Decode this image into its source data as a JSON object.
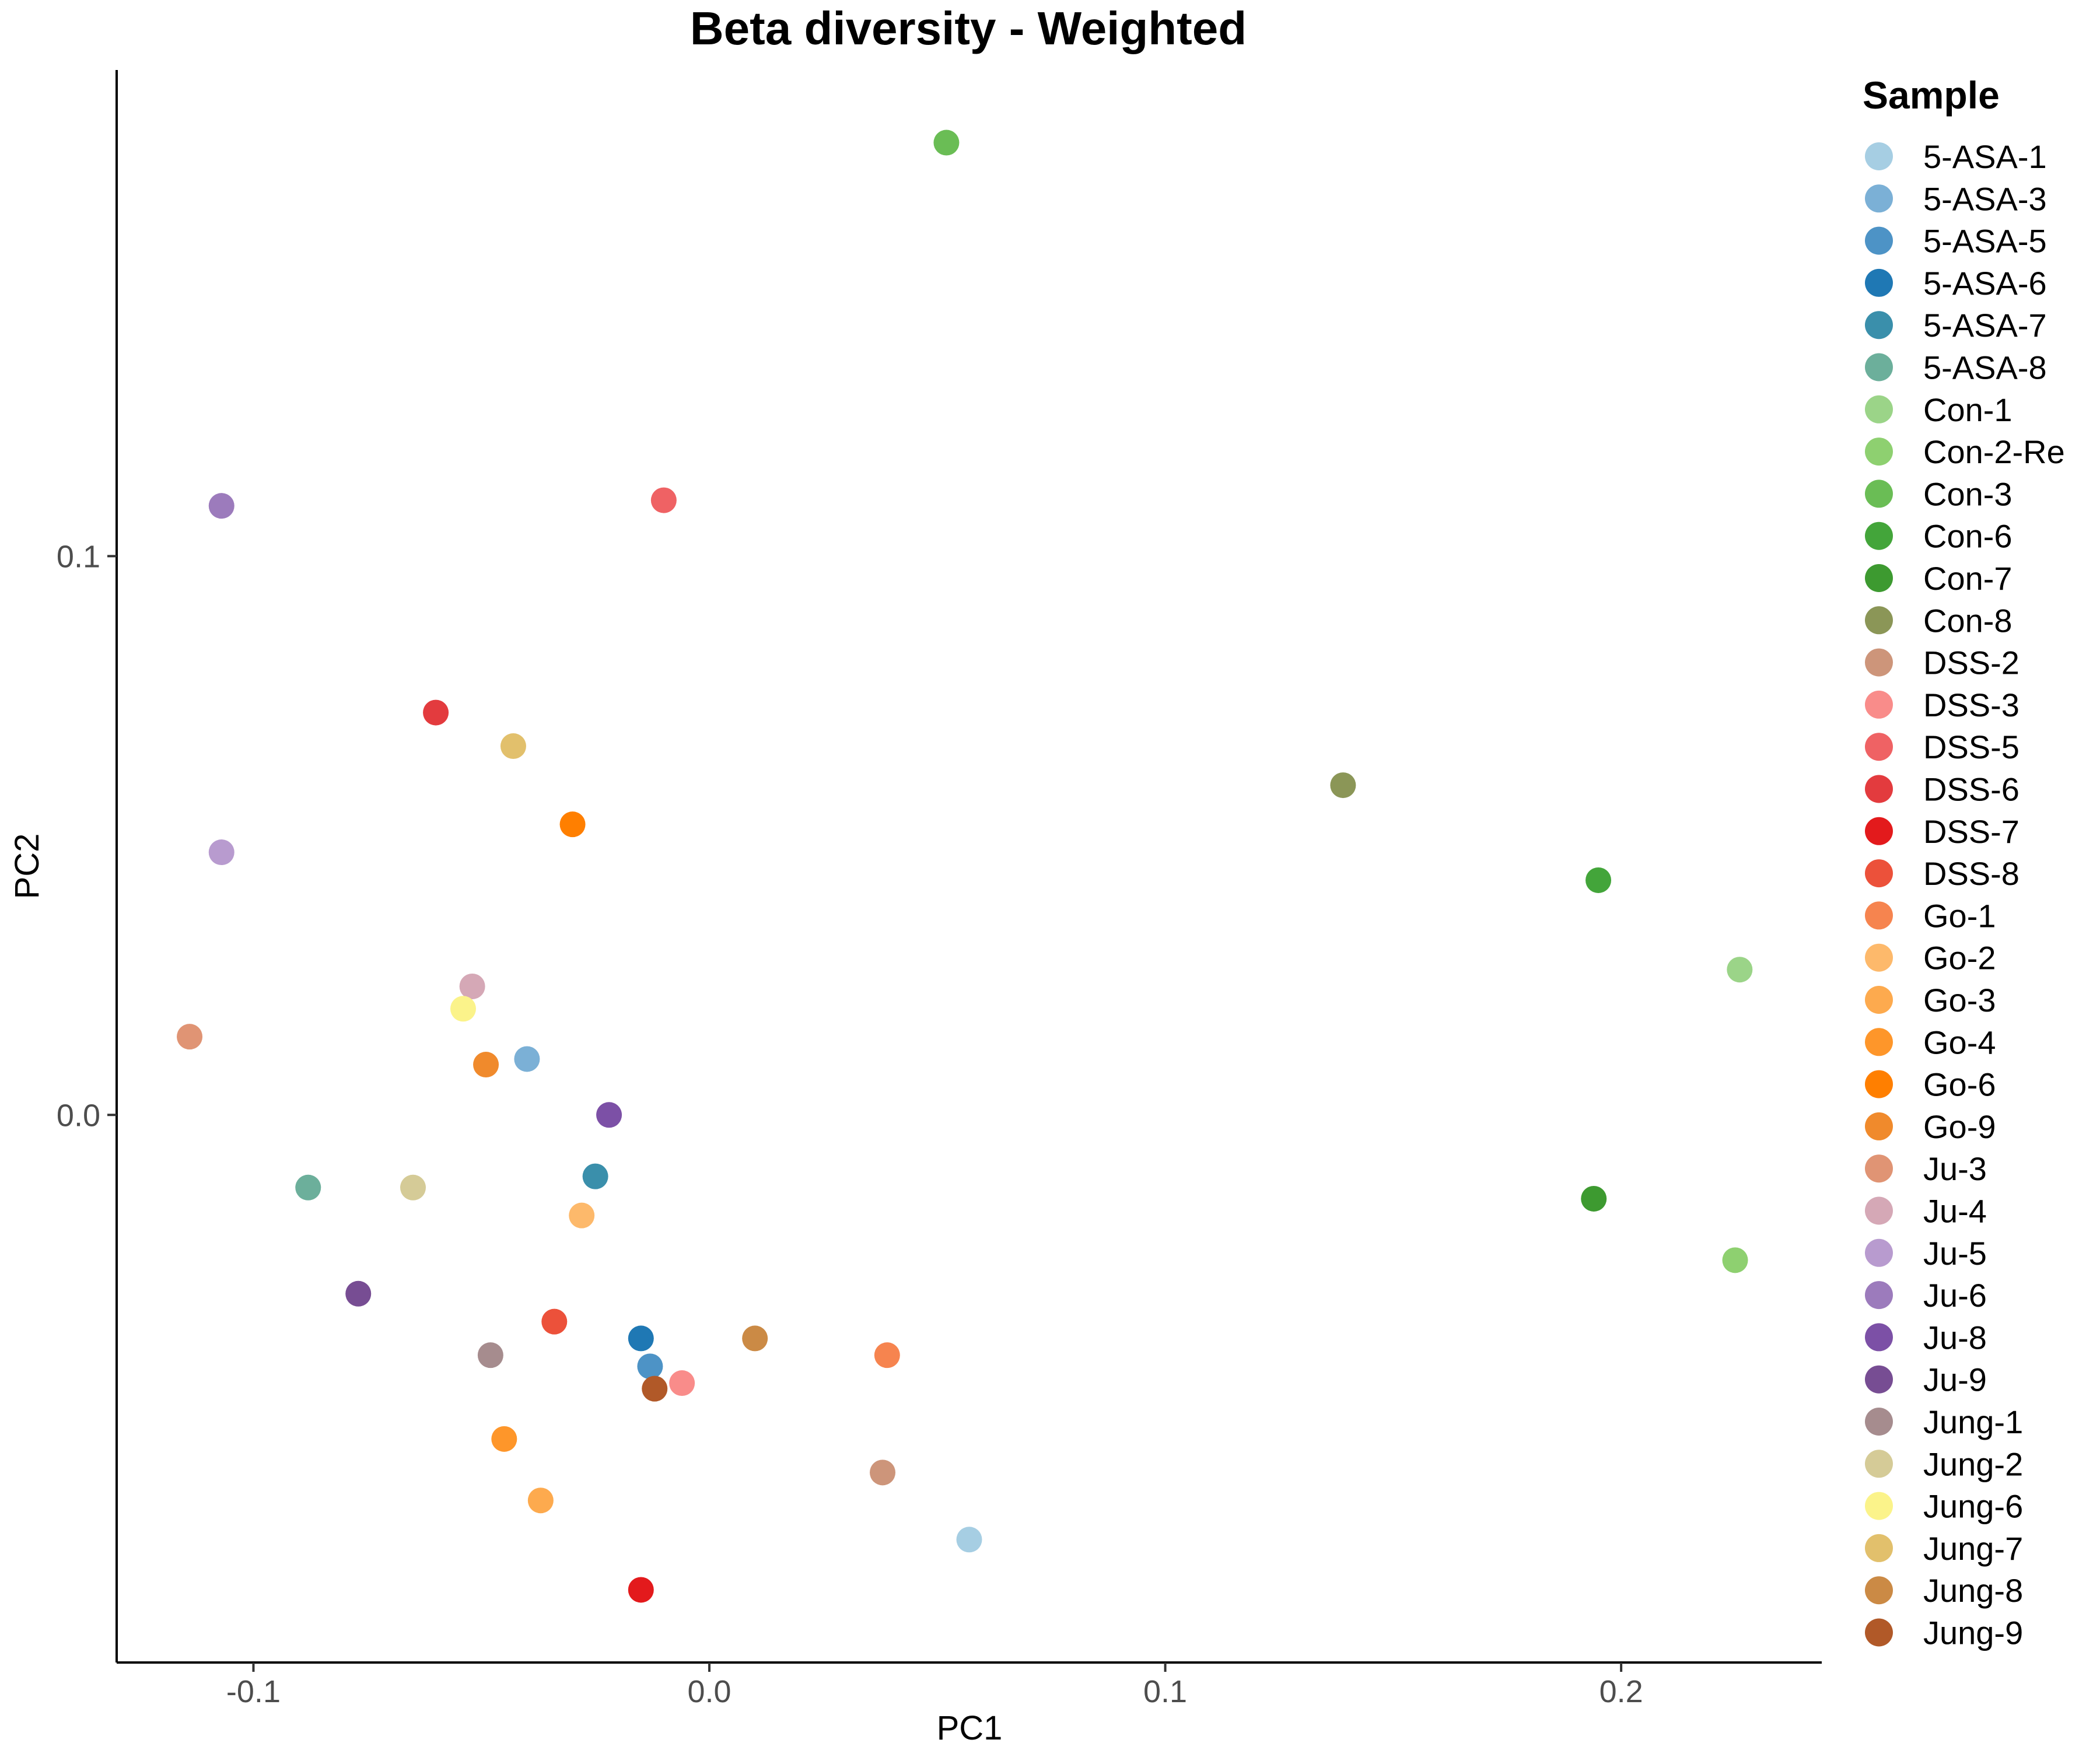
{
  "chart_data": {
    "type": "scatter",
    "title": "Beta diversity - Weighted",
    "xlabel": "PC1",
    "ylabel": "PC2",
    "xlim": [
      -0.13,
      0.244
    ],
    "ylim": [
      -0.098,
      0.187
    ],
    "x_ticks": [
      {
        "value": -0.1,
        "label": "-0.1"
      },
      {
        "value": 0.0,
        "label": "0.0"
      },
      {
        "value": 0.1,
        "label": "0.1"
      },
      {
        "value": 0.2,
        "label": "0.2"
      }
    ],
    "y_ticks": [
      {
        "value": 0.0,
        "label": "0.0"
      },
      {
        "value": 0.1,
        "label": "0.1"
      }
    ],
    "grid": false,
    "legend": {
      "title": "Sample",
      "position": "right"
    },
    "series": [
      {
        "name": "5-ASA-1",
        "color": "#A6CEE3",
        "x": 0.057,
        "y": -0.076
      },
      {
        "name": "5-ASA-3",
        "color": "#7BB0D6",
        "x": -0.04,
        "y": 0.01
      },
      {
        "name": "5-ASA-5",
        "color": "#4D93C6",
        "x": -0.013,
        "y": -0.045
      },
      {
        "name": "5-ASA-6",
        "color": "#1F78B4",
        "x": -0.015,
        "y": -0.04
      },
      {
        "name": "5-ASA-7",
        "color": "#3A8FAB",
        "x": -0.025,
        "y": -0.011
      },
      {
        "name": "5-ASA-8",
        "color": "#6CAF9B",
        "x": -0.088,
        "y": -0.013
      },
      {
        "name": "Con-1",
        "color": "#9BD488",
        "x": 0.226,
        "y": 0.026
      },
      {
        "name": "Con-2-Re",
        "color": "#8ED070",
        "x": 0.225,
        "y": -0.026
      },
      {
        "name": "Con-3",
        "color": "#6ABD55",
        "x": 0.052,
        "y": 0.174
      },
      {
        "name": "Con-6",
        "color": "#43A53A",
        "x": 0.195,
        "y": 0.042
      },
      {
        "name": "Con-7",
        "color": "#3D9A30",
        "x": 0.194,
        "y": -0.015
      },
      {
        "name": "Con-8",
        "color": "#8B9657",
        "x": 0.139,
        "y": 0.059
      },
      {
        "name": "DSS-2",
        "color": "#CD957A",
        "x": 0.038,
        "y": -0.064
      },
      {
        "name": "DSS-3",
        "color": "#F98C8A",
        "x": -0.006,
        "y": -0.048
      },
      {
        "name": "DSS-5",
        "color": "#EF6264",
        "x": -0.01,
        "y": 0.11
      },
      {
        "name": "DSS-6",
        "color": "#E33B3E",
        "x": -0.06,
        "y": 0.072
      },
      {
        "name": "DSS-7",
        "color": "#E31A1C",
        "x": -0.015,
        "y": -0.085
      },
      {
        "name": "DSS-8",
        "color": "#EC513A",
        "x": -0.034,
        "y": -0.037
      },
      {
        "name": "Go-1",
        "color": "#F6844F",
        "x": 0.039,
        "y": -0.043
      },
      {
        "name": "Go-2",
        "color": "#FDB96B",
        "x": -0.028,
        "y": -0.018
      },
      {
        "name": "Go-3",
        "color": "#FDAA4E",
        "x": -0.037,
        "y": -0.069
      },
      {
        "name": "Go-4",
        "color": "#FE962A",
        "x": -0.045,
        "y": -0.058
      },
      {
        "name": "Go-6",
        "color": "#FF7F00",
        "x": -0.03,
        "y": 0.052
      },
      {
        "name": "Go-9",
        "color": "#F08A2C",
        "x": -0.049,
        "y": 0.009
      },
      {
        "name": "Ju-3",
        "color": "#E09474",
        "x": -0.114,
        "y": 0.014
      },
      {
        "name": "Ju-4",
        "color": "#D5A8B6",
        "x": -0.052,
        "y": 0.023
      },
      {
        "name": "Ju-5",
        "color": "#B89BCF",
        "x": -0.107,
        "y": 0.047
      },
      {
        "name": "Ju-6",
        "color": "#9C7BBC",
        "x": -0.107,
        "y": 0.109
      },
      {
        "name": "Ju-8",
        "color": "#7C50A6",
        "x": -0.022,
        "y": 0.0
      },
      {
        "name": "Ju-9",
        "color": "#774D93",
        "x": -0.077,
        "y": -0.032
      },
      {
        "name": "Jung-1",
        "color": "#A68C8E",
        "x": -0.048,
        "y": -0.043
      },
      {
        "name": "Jung-2",
        "color": "#D5CB97",
        "x": -0.065,
        "y": -0.013
      },
      {
        "name": "Jung-6",
        "color": "#FBF38A",
        "x": -0.054,
        "y": 0.019
      },
      {
        "name": "Jung-7",
        "color": "#E2C06C",
        "x": -0.043,
        "y": 0.066
      },
      {
        "name": "Jung-8",
        "color": "#CB8A45",
        "x": 0.01,
        "y": -0.04
      },
      {
        "name": "Jung-9",
        "color": "#B15928",
        "x": -0.012,
        "y": -0.049
      }
    ]
  }
}
